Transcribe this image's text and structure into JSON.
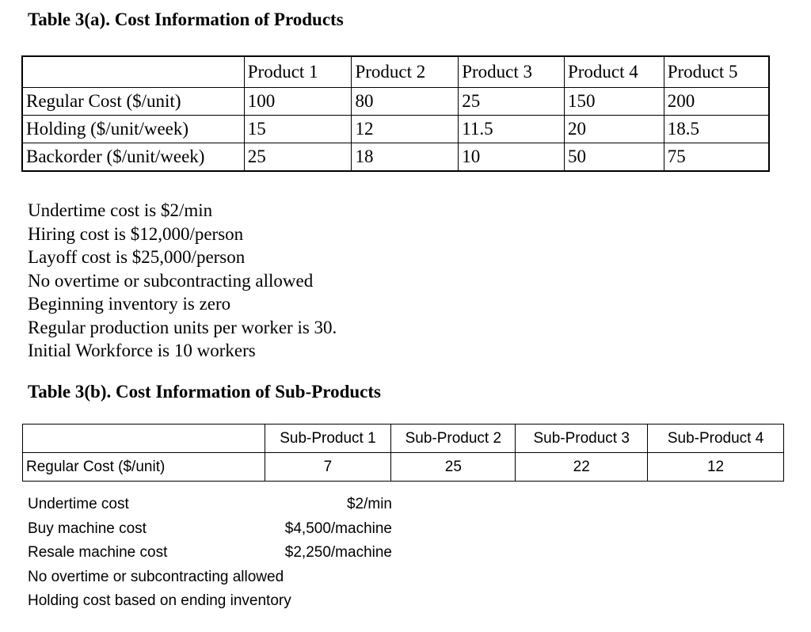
{
  "table_a": {
    "title": "Table 3(a). Cost Information of Products",
    "headers": [
      "",
      "Product 1",
      "Product 2",
      "Product 3",
      "Product 4",
      "Product 5"
    ],
    "rows": [
      [
        "Regular Cost ($/unit)",
        "100",
        "80",
        "25",
        "150",
        "200"
      ],
      [
        "Holding ($/unit/week)",
        "15",
        "12",
        "11.5",
        "20",
        "18.5"
      ],
      [
        "Backorder ($/unit/week)",
        "25",
        "18",
        "10",
        "50",
        "75"
      ]
    ],
    "notes": [
      "Undertime cost is $2/min",
      "Hiring cost is $12,000/person",
      "Layoff cost is $25,000/person",
      "No overtime or subcontracting allowed",
      "Beginning inventory is zero",
      "Regular production units per worker is 30.",
      "Initial Workforce is 10 workers"
    ]
  },
  "table_b": {
    "title": "Table 3(b). Cost Information of Sub-Products",
    "headers": [
      "",
      "Sub-Product 1",
      "Sub-Product 2",
      "Sub-Product 3",
      "Sub-Product 4"
    ],
    "row": [
      "Regular Cost ($/unit)",
      "7",
      "25",
      "22",
      "12"
    ],
    "cost_notes": [
      {
        "label": "Undertime cost",
        "value": "$2/min"
      },
      {
        "label": "Buy machine cost",
        "value": "$4,500/machine"
      },
      {
        "label": "Resale machine cost",
        "value": "$2,250/machine"
      }
    ],
    "notes": [
      "No overtime or subcontracting allowed",
      "Holding cost based on ending inventory"
    ]
  }
}
